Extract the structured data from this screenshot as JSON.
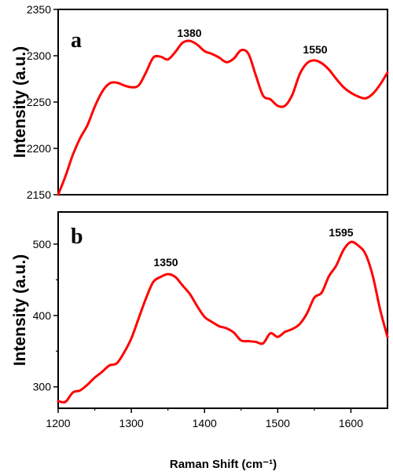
{
  "chart_data": [
    {
      "type": "line",
      "panel": "a",
      "title": "",
      "ylabel": "Intensity (a.u.)",
      "xlabel": "",
      "xlim": [
        1200,
        1650
      ],
      "ylim": [
        2150,
        2350
      ],
      "yticks": [
        2150,
        2200,
        2250,
        2300,
        2350
      ],
      "grid": false,
      "color": "#ff0000",
      "annotations": [
        {
          "text": "1380",
          "x": 1380,
          "y": 2317
        },
        {
          "text": "1550",
          "x": 1550,
          "y": 2296
        }
      ],
      "x": [
        1200,
        1210,
        1220,
        1230,
        1240,
        1250,
        1260,
        1270,
        1280,
        1290,
        1300,
        1310,
        1320,
        1330,
        1340,
        1350,
        1360,
        1370,
        1380,
        1390,
        1400,
        1410,
        1420,
        1430,
        1440,
        1450,
        1460,
        1470,
        1480,
        1490,
        1500,
        1510,
        1520,
        1530,
        1540,
        1550,
        1560,
        1570,
        1580,
        1590,
        1600,
        1610,
        1620,
        1630,
        1640,
        1650
      ],
      "y": [
        2150,
        2170,
        2193,
        2211,
        2225,
        2245,
        2261,
        2270,
        2271,
        2268,
        2266,
        2268,
        2282,
        2298,
        2299,
        2296,
        2304,
        2314,
        2316,
        2312,
        2305,
        2302,
        2298,
        2293,
        2297,
        2306,
        2302,
        2279,
        2257,
        2253,
        2246,
        2246,
        2258,
        2280,
        2292,
        2295,
        2292,
        2285,
        2275,
        2266,
        2260,
        2256,
        2254,
        2259,
        2269,
        2282
      ]
    },
    {
      "type": "line",
      "panel": "b",
      "title": "",
      "ylabel": "Intensity (a.u.)",
      "xlabel": "Raman Shift (cm⁻¹)",
      "xlim": [
        1200,
        1650
      ],
      "ylim": [
        270,
        545
      ],
      "yticks": [
        300,
        400,
        500
      ],
      "xticks": [
        1200,
        1300,
        1400,
        1500,
        1600
      ],
      "grid": false,
      "color": "#ff0000",
      "annotations": [
        {
          "text": "1350",
          "x": 1350,
          "y": 458
        },
        {
          "text": "1595",
          "x": 1595,
          "y": 504
        }
      ],
      "x": [
        1200,
        1210,
        1220,
        1230,
        1240,
        1250,
        1260,
        1270,
        1280,
        1290,
        1300,
        1310,
        1320,
        1330,
        1340,
        1350,
        1360,
        1370,
        1380,
        1390,
        1400,
        1410,
        1420,
        1430,
        1440,
        1450,
        1460,
        1470,
        1480,
        1490,
        1500,
        1510,
        1520,
        1530,
        1540,
        1550,
        1560,
        1570,
        1580,
        1590,
        1600,
        1610,
        1620,
        1630,
        1640,
        1650
      ],
      "y": [
        280,
        279,
        292,
        295,
        303,
        313,
        321,
        330,
        333,
        348,
        368,
        396,
        424,
        447,
        454,
        458,
        454,
        442,
        430,
        413,
        398,
        391,
        385,
        382,
        376,
        365,
        364,
        363,
        361,
        375,
        370,
        377,
        381,
        388,
        403,
        425,
        432,
        455,
        470,
        492,
        503,
        498,
        486,
        455,
        408,
        370
      ]
    }
  ]
}
